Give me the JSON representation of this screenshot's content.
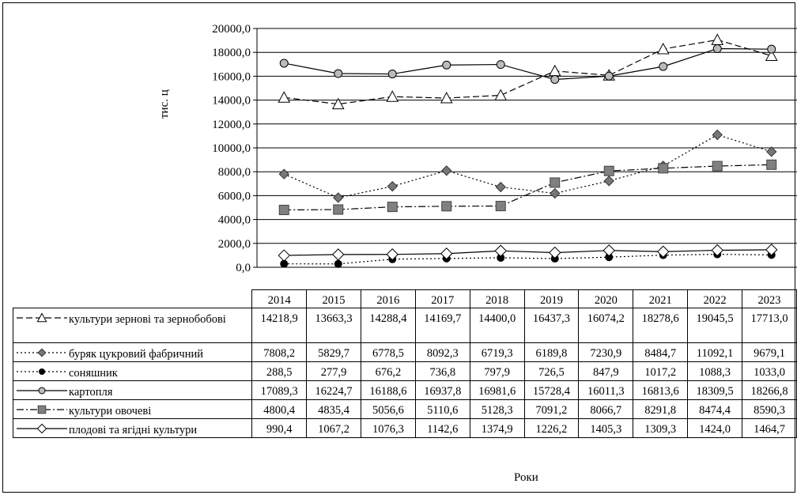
{
  "chart_data": {
    "type": "line",
    "title": "",
    "xlabel": "Роки",
    "ylabel": "тис. ц",
    "ylim": [
      0,
      20000
    ],
    "ytick_labels": [
      "0,0",
      "2000,0",
      "4000,0",
      "6000,0",
      "8000,0",
      "10000,0",
      "12000,0",
      "14000,0",
      "16000,0",
      "18000,0",
      "20000,0"
    ],
    "grid": true,
    "legend": "data-table",
    "categories": [
      "2014",
      "2015",
      "2016",
      "2017",
      "2018",
      "2019",
      "2020",
      "2021",
      "2022",
      "2023"
    ],
    "series": [
      {
        "name": "культури зернові та зернобобові",
        "marker": "triangle-open",
        "line": "dashed",
        "values": [
          14218.9,
          13663.3,
          14288.4,
          14169.7,
          14400.0,
          16437.3,
          16074.2,
          18278.6,
          19045.5,
          17713.0
        ],
        "labels": [
          "14218,9",
          "13663,3",
          "14288,4",
          "14169,7",
          "14400,0",
          "16437,3",
          "16074,2",
          "18278,6",
          "19045,5",
          "17713,0"
        ]
      },
      {
        "name": "буряк цукровий фабричний",
        "marker": "diamond-gray",
        "line": "dotted",
        "values": [
          7808.2,
          5829.7,
          6778.5,
          8092.3,
          6719.3,
          6189.8,
          7230.9,
          8484.7,
          11092.1,
          9679.1
        ],
        "labels": [
          "7808,2",
          "5829,7",
          "6778,5",
          "8092,3",
          "6719,3",
          "6189,8",
          "7230,9",
          "8484,7",
          "11092,1",
          "9679,1"
        ]
      },
      {
        "name": "соняшник",
        "marker": "circle-filled",
        "line": "dotted",
        "values": [
          288.5,
          277.9,
          676.2,
          736.8,
          797.9,
          726.5,
          847.9,
          1017.2,
          1088.3,
          1033.0
        ],
        "labels": [
          "288,5",
          "277,9",
          "676,2",
          "736,8",
          "797,9",
          "726,5",
          "847,9",
          "1017,2",
          "1088,3",
          "1033,0"
        ]
      },
      {
        "name": "картопля",
        "marker": "circle-gray",
        "line": "solid",
        "values": [
          17089.3,
          16224.7,
          16188.6,
          16937.8,
          16981.6,
          15728.4,
          16011.3,
          16813.6,
          18309.5,
          18266.8
        ],
        "labels": [
          "17089,3",
          "16224,7",
          "16188,6",
          "16937,8",
          "16981,6",
          "15728,4",
          "16011,3",
          "16813,6",
          "18309,5",
          "18266,8"
        ]
      },
      {
        "name": "культури овочеві",
        "marker": "square-gray",
        "line": "dashdot",
        "values": [
          4800.4,
          4835.4,
          5056.6,
          5110.6,
          5128.3,
          7091.2,
          8066.7,
          8291.8,
          8474.4,
          8590.3
        ],
        "labels": [
          "4800,4",
          "4835,4",
          "5056,6",
          "5110,6",
          "5128,3",
          "7091,2",
          "8066,7",
          "8291,8",
          "8474,4",
          "8590,3"
        ]
      },
      {
        "name": "плодові та ягідні культури",
        "marker": "diamond-open",
        "line": "solid",
        "values": [
          990.4,
          1067.2,
          1076.3,
          1142.6,
          1374.9,
          1226.2,
          1405.3,
          1309.3,
          1424.0,
          1464.7
        ],
        "labels": [
          "990,4",
          "1067,2",
          "1076,3",
          "1142,6",
          "1374,9",
          "1226,2",
          "1405,3",
          "1309,3",
          "1424,0",
          "1464,7"
        ]
      }
    ]
  }
}
